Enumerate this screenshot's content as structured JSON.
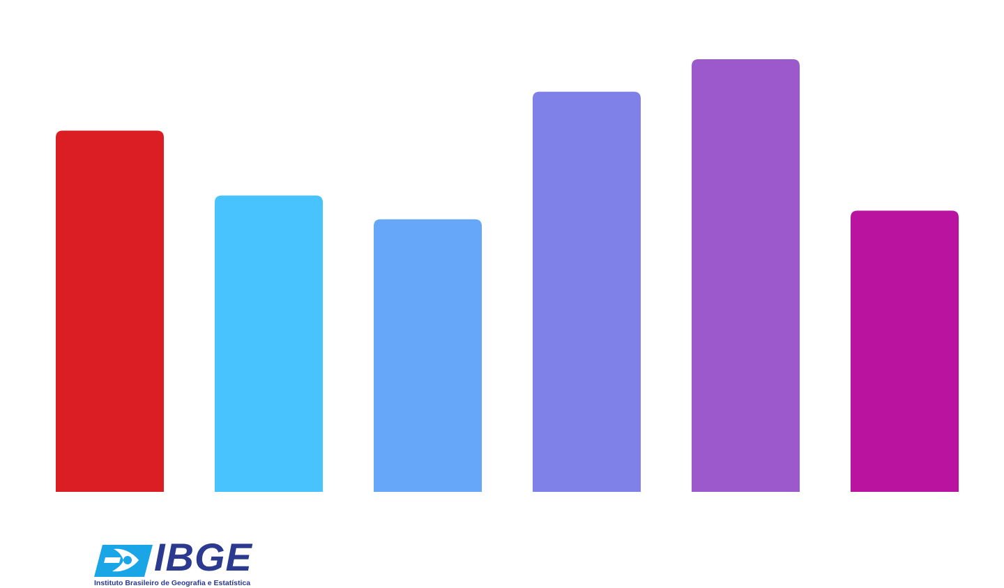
{
  "chart_data": {
    "type": "bar",
    "categories": [
      "",
      "",
      "",
      "",
      "",
      ""
    ],
    "values": [
      83.5,
      68.5,
      63,
      92.5,
      100,
      65
    ],
    "colors": [
      "#da1e24",
      "#48c3fe",
      "#66a7f9",
      "#8081e8",
      "#9b59cc",
      "#b9139f"
    ],
    "title": "",
    "xlabel": "",
    "ylabel": "",
    "ylim": [
      0,
      100
    ],
    "grid": false,
    "legend": "none"
  },
  "logo": {
    "wordmark": "IBGE",
    "tagline": "Instituto Brasileiro de Geografia e Estatística",
    "color": "#2b3a8f",
    "accent": "#1aa6e6",
    "icon": "ibge-globe-icon"
  }
}
